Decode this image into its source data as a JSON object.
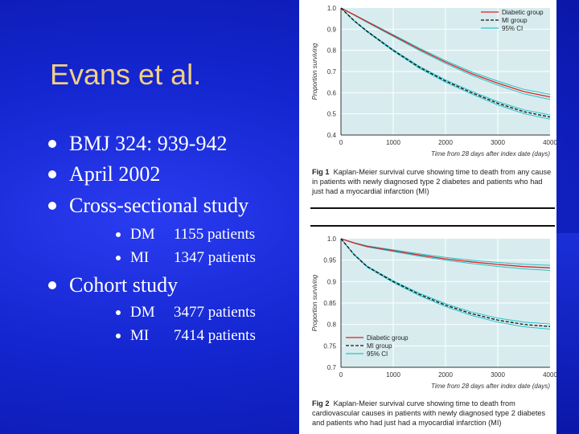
{
  "slide": {
    "title": "Evans et al.",
    "bullets": [
      {
        "text": "BMJ 324: 939-942"
      },
      {
        "text": "April 2002"
      },
      {
        "text": "Cross-sectional study",
        "sub": [
          {
            "label": "DM",
            "value": "1155 patients"
          },
          {
            "label": "MI",
            "value": "1347 patients"
          }
        ]
      },
      {
        "text": "Cohort study",
        "sub": [
          {
            "label": "DM",
            "value": "3477 patients"
          },
          {
            "label": "MI",
            "value": "7414 patients"
          }
        ]
      }
    ],
    "colors": {
      "background": "#1426cf",
      "title": "#f2cf84",
      "text": "#ffffff"
    }
  },
  "chart_data": [
    {
      "type": "line",
      "ylabel": "Proportion surviving",
      "xlabel": "Time from 28 days after index date (days)",
      "xlim": [
        0,
        4000
      ],
      "ylim": [
        0.4,
        1.0
      ],
      "xticks": [
        "0",
        "1000",
        "2000",
        "3000",
        "4000"
      ],
      "yticks": [
        "1.0",
        "0.9",
        "0.8",
        "0.7",
        "0.6",
        "0.5",
        "0.4"
      ],
      "legend": [
        "Diabetic group",
        "MI group",
        "95% CI"
      ],
      "legend_position": "top-right",
      "series": [
        {
          "name": "Diabetic group",
          "style": "solid",
          "color": "#e02020",
          "x": [
            0,
            250,
            500,
            1000,
            1500,
            2000,
            2500,
            3000,
            3500,
            4000
          ],
          "y": [
            1.0,
            0.968,
            0.935,
            0.87,
            0.805,
            0.745,
            0.69,
            0.645,
            0.605,
            0.58
          ]
        },
        {
          "name": "MI group",
          "style": "dashed",
          "color": "#111111",
          "x": [
            0,
            250,
            500,
            1000,
            1500,
            2000,
            2500,
            3000,
            3500,
            4000
          ],
          "y": [
            1.0,
            0.94,
            0.89,
            0.8,
            0.72,
            0.655,
            0.6,
            0.55,
            0.51,
            0.485
          ]
        },
        {
          "name": "95% CI",
          "style": "solid",
          "color": "#26c2c8",
          "band_of": "Diabetic group",
          "offset": 0.012
        },
        {
          "name": "95% CI",
          "style": "solid",
          "color": "#26c2c8",
          "band_of": "MI group",
          "offset": 0.01
        }
      ],
      "caption_label": "Fig 1",
      "caption": "Kaplan-Meier survival curve showing time to death from any cause in patients with newly diagnosed type 2 diabetes and patients who had just had a myocardial infarction (MI)"
    },
    {
      "type": "line",
      "ylabel": "Proportion surviving",
      "xlabel": "Time from 28 days after index date (days)",
      "xlim": [
        0,
        4000
      ],
      "ylim": [
        0.7,
        1.0
      ],
      "xticks": [
        "0",
        "1000",
        "2000",
        "3000",
        "4000"
      ],
      "yticks": [
        "1.0",
        "0.95",
        "0.9",
        "0.85",
        "0.8",
        "0.75",
        "0.7"
      ],
      "legend": [
        "Diabetic group",
        "MI group",
        "95% CI"
      ],
      "legend_position": "bottom-left",
      "series": [
        {
          "name": "Diabetic group",
          "style": "solid",
          "color": "#e02020",
          "x": [
            0,
            250,
            500,
            1000,
            1500,
            2000,
            2500,
            3000,
            3500,
            4000
          ],
          "y": [
            1.0,
            0.99,
            0.982,
            0.972,
            0.962,
            0.953,
            0.946,
            0.94,
            0.935,
            0.932
          ]
        },
        {
          "name": "MI group",
          "style": "dashed",
          "color": "#111111",
          "x": [
            0,
            250,
            500,
            1000,
            1500,
            2000,
            2500,
            3000,
            3500,
            4000
          ],
          "y": [
            1.0,
            0.963,
            0.935,
            0.9,
            0.87,
            0.845,
            0.825,
            0.81,
            0.8,
            0.795
          ]
        },
        {
          "name": "95% CI",
          "style": "solid",
          "color": "#26c2c8",
          "band_of": "Diabetic group",
          "offset": 0.006
        },
        {
          "name": "95% CI",
          "style": "solid",
          "color": "#26c2c8",
          "band_of": "MI group",
          "offset": 0.006
        }
      ],
      "caption_label": "Fig 2",
      "caption": "Kaplan-Meier survival curve showing time to death from cardiovascular causes in patients with newly diagnosed type 2 diabetes and patients who had just had a myocardial infarction (MI)"
    }
  ]
}
